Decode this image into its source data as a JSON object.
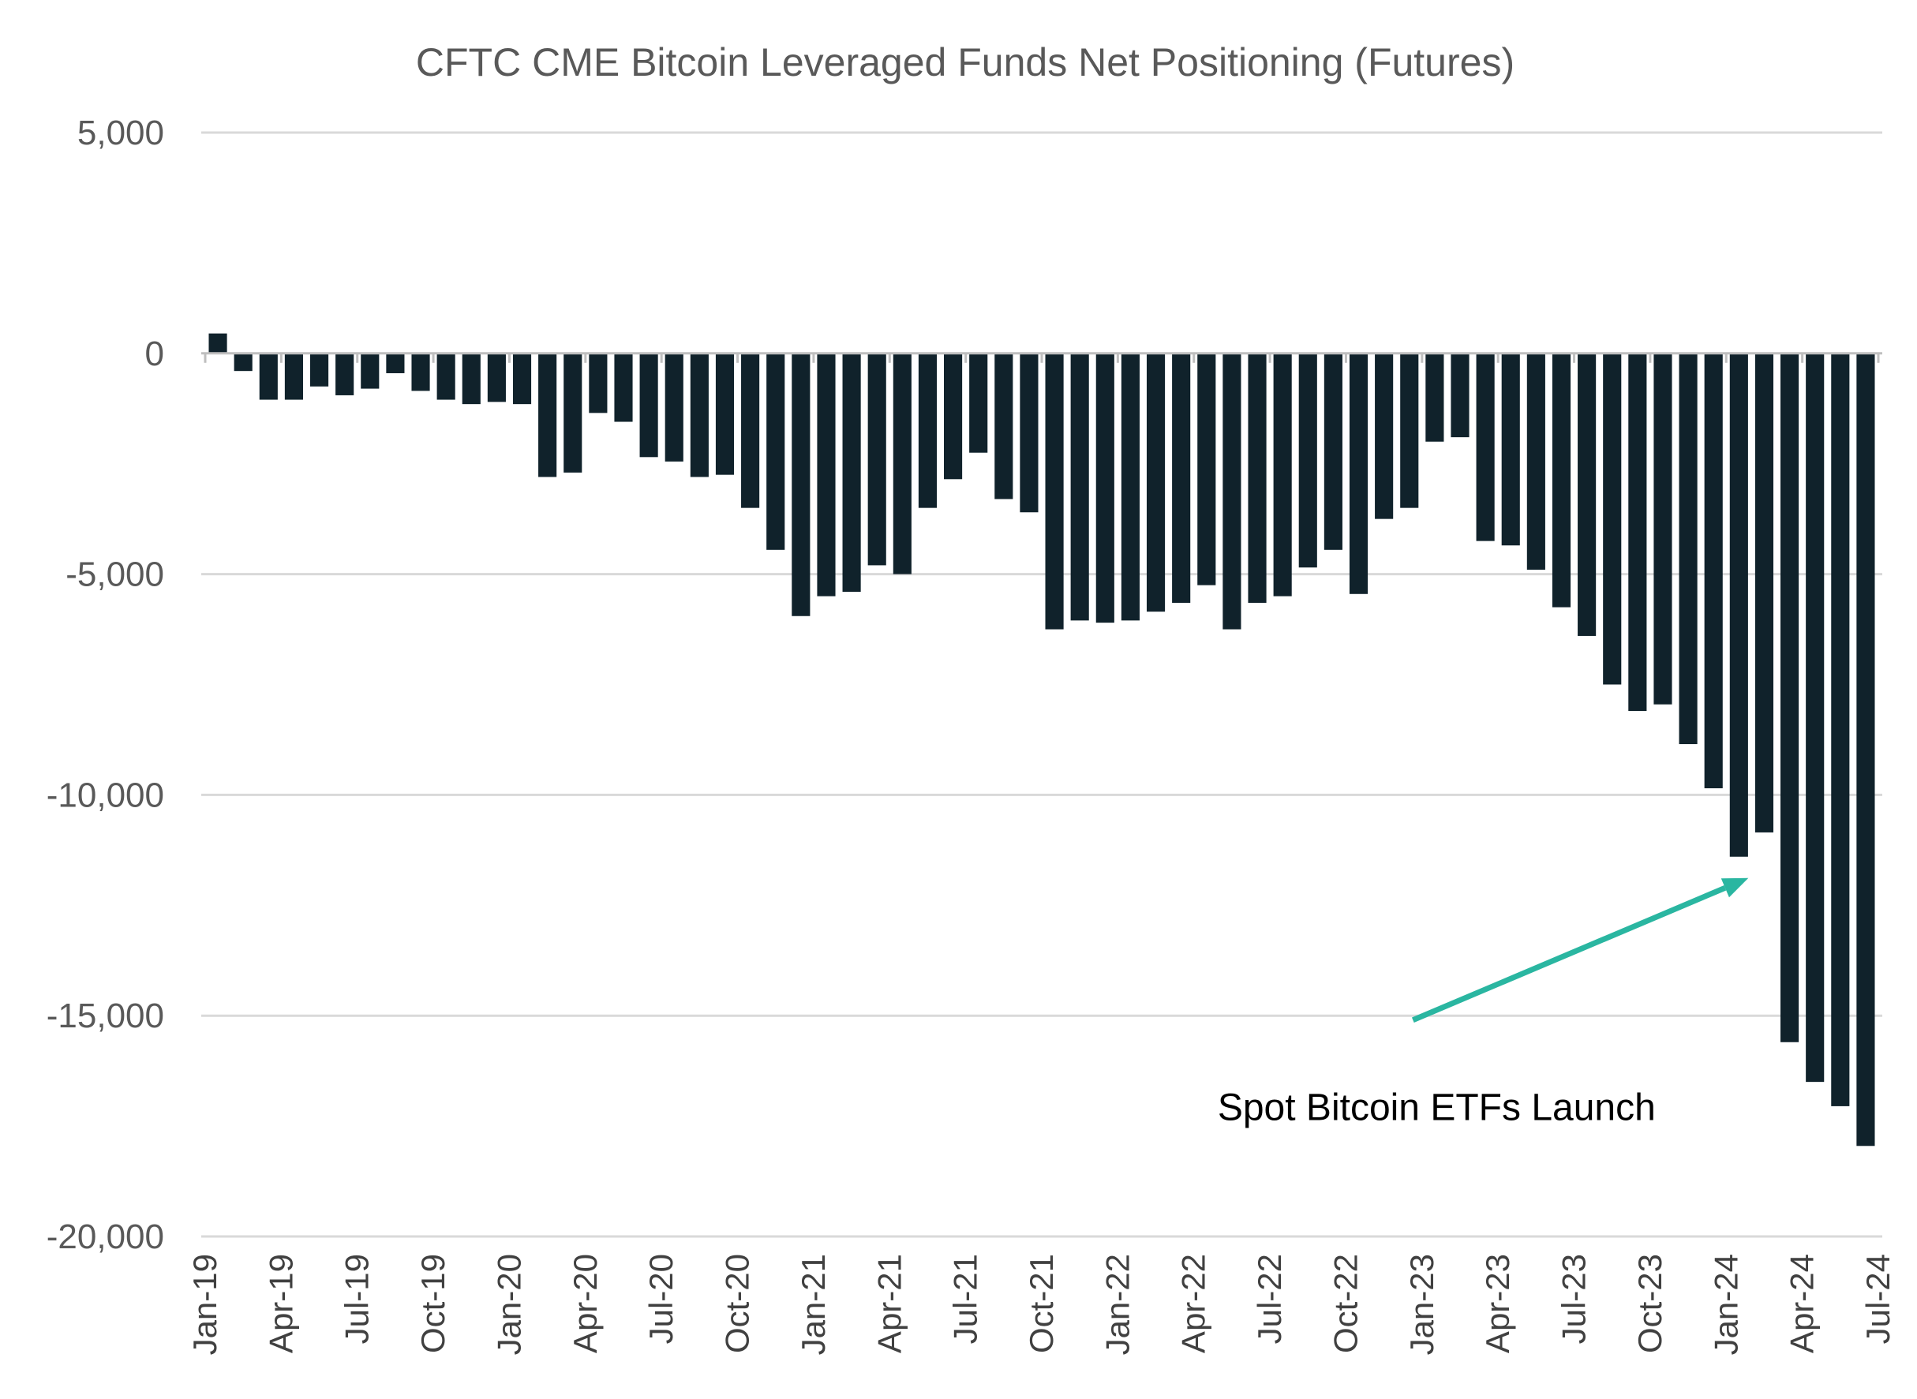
{
  "chart_data": {
    "type": "bar",
    "title": "CFTC CME Bitcoin Leveraged Funds Net Positioning (Futures)",
    "xlabel": "",
    "ylabel": "",
    "ylim": [
      -20000,
      5000
    ],
    "yticks": [
      5000,
      0,
      -5000,
      -10000,
      -15000,
      -20000
    ],
    "ytick_labels": [
      "5,000",
      "0",
      "-5,000",
      "-10,000",
      "-15,000",
      "-20,000"
    ],
    "xtick_labels": [
      "Jan-19",
      "Apr-19",
      "Jul-19",
      "Oct-19",
      "Jan-20",
      "Apr-20",
      "Jul-20",
      "Oct-20",
      "Jan-21",
      "Apr-21",
      "Jul-21",
      "Oct-21",
      "Jan-22",
      "Apr-22",
      "Jul-22",
      "Oct-22",
      "Jan-23",
      "Apr-23",
      "Jul-23",
      "Oct-23",
      "Jan-24",
      "Apr-24",
      "Jul-24"
    ],
    "categories": [
      "Jan-19",
      "Feb-19",
      "Mar-19",
      "Apr-19",
      "May-19",
      "Jun-19",
      "Jul-19",
      "Aug-19",
      "Sep-19",
      "Oct-19",
      "Nov-19",
      "Dec-19",
      "Jan-20",
      "Feb-20",
      "Mar-20",
      "Apr-20",
      "May-20",
      "Jun-20",
      "Jul-20",
      "Aug-20",
      "Sep-20",
      "Oct-20",
      "Nov-20",
      "Dec-20",
      "Jan-21",
      "Feb-21",
      "Mar-21",
      "Apr-21",
      "May-21",
      "Jun-21",
      "Jul-21",
      "Aug-21",
      "Sep-21",
      "Oct-21",
      "Nov-21",
      "Dec-21",
      "Jan-22",
      "Feb-22",
      "Mar-22",
      "Apr-22",
      "May-22",
      "Jun-22",
      "Jul-22",
      "Aug-22",
      "Sep-22",
      "Oct-22",
      "Nov-22",
      "Dec-22",
      "Jan-23",
      "Feb-23",
      "Mar-23",
      "Apr-23",
      "May-23",
      "Jun-23",
      "Jul-23",
      "Aug-23",
      "Sep-23",
      "Oct-23",
      "Nov-23",
      "Dec-23",
      "Jan-24",
      "Feb-24",
      "Mar-24",
      "Apr-24",
      "May-24",
      "Jun-24"
    ],
    "values": [
      450,
      -400,
      -1050,
      -1050,
      -750,
      -950,
      -800,
      -450,
      -850,
      -1050,
      -1150,
      -1100,
      -1150,
      -2800,
      -2700,
      -1350,
      -1550,
      -2350,
      -2450,
      -2800,
      -2750,
      -3500,
      -4450,
      -5950,
      -5500,
      -5400,
      -4800,
      -5000,
      -3500,
      -2850,
      -2250,
      -3300,
      -3600,
      -6250,
      -6050,
      -6100,
      -6050,
      -5850,
      -5650,
      -5250,
      -6250,
      -5650,
      -5500,
      -4850,
      -4450,
      -5450,
      -3750,
      -3500,
      -2000,
      -1900,
      -4250,
      -4350,
      -4900,
      -5750,
      -6400,
      -7500,
      -8100,
      -7950,
      -8850,
      -9850,
      -11400,
      -10850,
      -15600,
      -16500,
      -17050,
      -17950
    ],
    "colors": {
      "bar": "#10222b",
      "arrow": "#2ab6a1"
    },
    "annotations": [
      {
        "text": "Spot Bitcoin ETFs Launch",
        "points_to": "Jan-24"
      }
    ],
    "grid": true,
    "legend": "none"
  }
}
